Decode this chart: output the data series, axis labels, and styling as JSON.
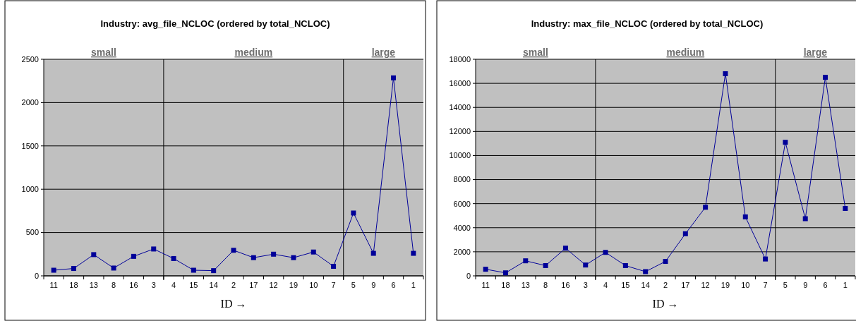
{
  "chart_data": [
    {
      "type": "line",
      "title": "Industry: avg_file_NCLOC (ordered by total_NCLOC)",
      "xlabel": "ID →",
      "categories": [
        "11",
        "18",
        "13",
        "8",
        "16",
        "3",
        "4",
        "15",
        "14",
        "2",
        "17",
        "12",
        "19",
        "10",
        "7",
        "5",
        "9",
        "6",
        "1"
      ],
      "series": [
        {
          "color": "#000099",
          "values": [
            65,
            85,
            245,
            90,
            225,
            310,
            200,
            65,
            60,
            295,
            210,
            250,
            210,
            275,
            110,
            725,
            260,
            2285,
            260
          ]
        }
      ],
      "ylim": [
        0,
        2500
      ],
      "yticks": [
        0,
        500,
        1000,
        1500,
        2000,
        2500
      ],
      "grid": "y",
      "marker": "square",
      "bands": [
        {
          "axis": "x",
          "from": "11",
          "to": "3",
          "label": "small",
          "color": "#c0c0c0"
        },
        {
          "axis": "x",
          "from": "4",
          "to": "7",
          "label": "medium",
          "color": "#c0c0c0"
        },
        {
          "axis": "x",
          "from": "5",
          "to": "1",
          "label": "large",
          "color": "#c0c0c0"
        }
      ]
    },
    {
      "type": "line",
      "title": "Industry: max_file_NCLOC (ordered by total_NCLOC)",
      "xlabel": "ID →",
      "categories": [
        "11",
        "18",
        "13",
        "8",
        "16",
        "3",
        "4",
        "15",
        "14",
        "2",
        "17",
        "12",
        "19",
        "10",
        "7",
        "5",
        "9",
        "6",
        "1"
      ],
      "series": [
        {
          "color": "#000099",
          "values": [
            550,
            250,
            1250,
            850,
            2300,
            900,
            1950,
            850,
            350,
            1200,
            3500,
            5700,
            16800,
            4900,
            1400,
            11100,
            4750,
            16500,
            5600
          ]
        }
      ],
      "ylim": [
        0,
        18000
      ],
      "yticks": [
        0,
        2000,
        4000,
        6000,
        8000,
        10000,
        12000,
        14000,
        16000,
        18000
      ],
      "grid": "y",
      "marker": "square",
      "bands": [
        {
          "axis": "x",
          "from": "11",
          "to": "3",
          "label": "small",
          "color": "#c0c0c0"
        },
        {
          "axis": "x",
          "from": "4",
          "to": "7",
          "label": "medium",
          "color": "#c0c0c0"
        },
        {
          "axis": "x",
          "from": "5",
          "to": "1",
          "label": "large",
          "color": "#c0c0c0"
        }
      ]
    }
  ]
}
